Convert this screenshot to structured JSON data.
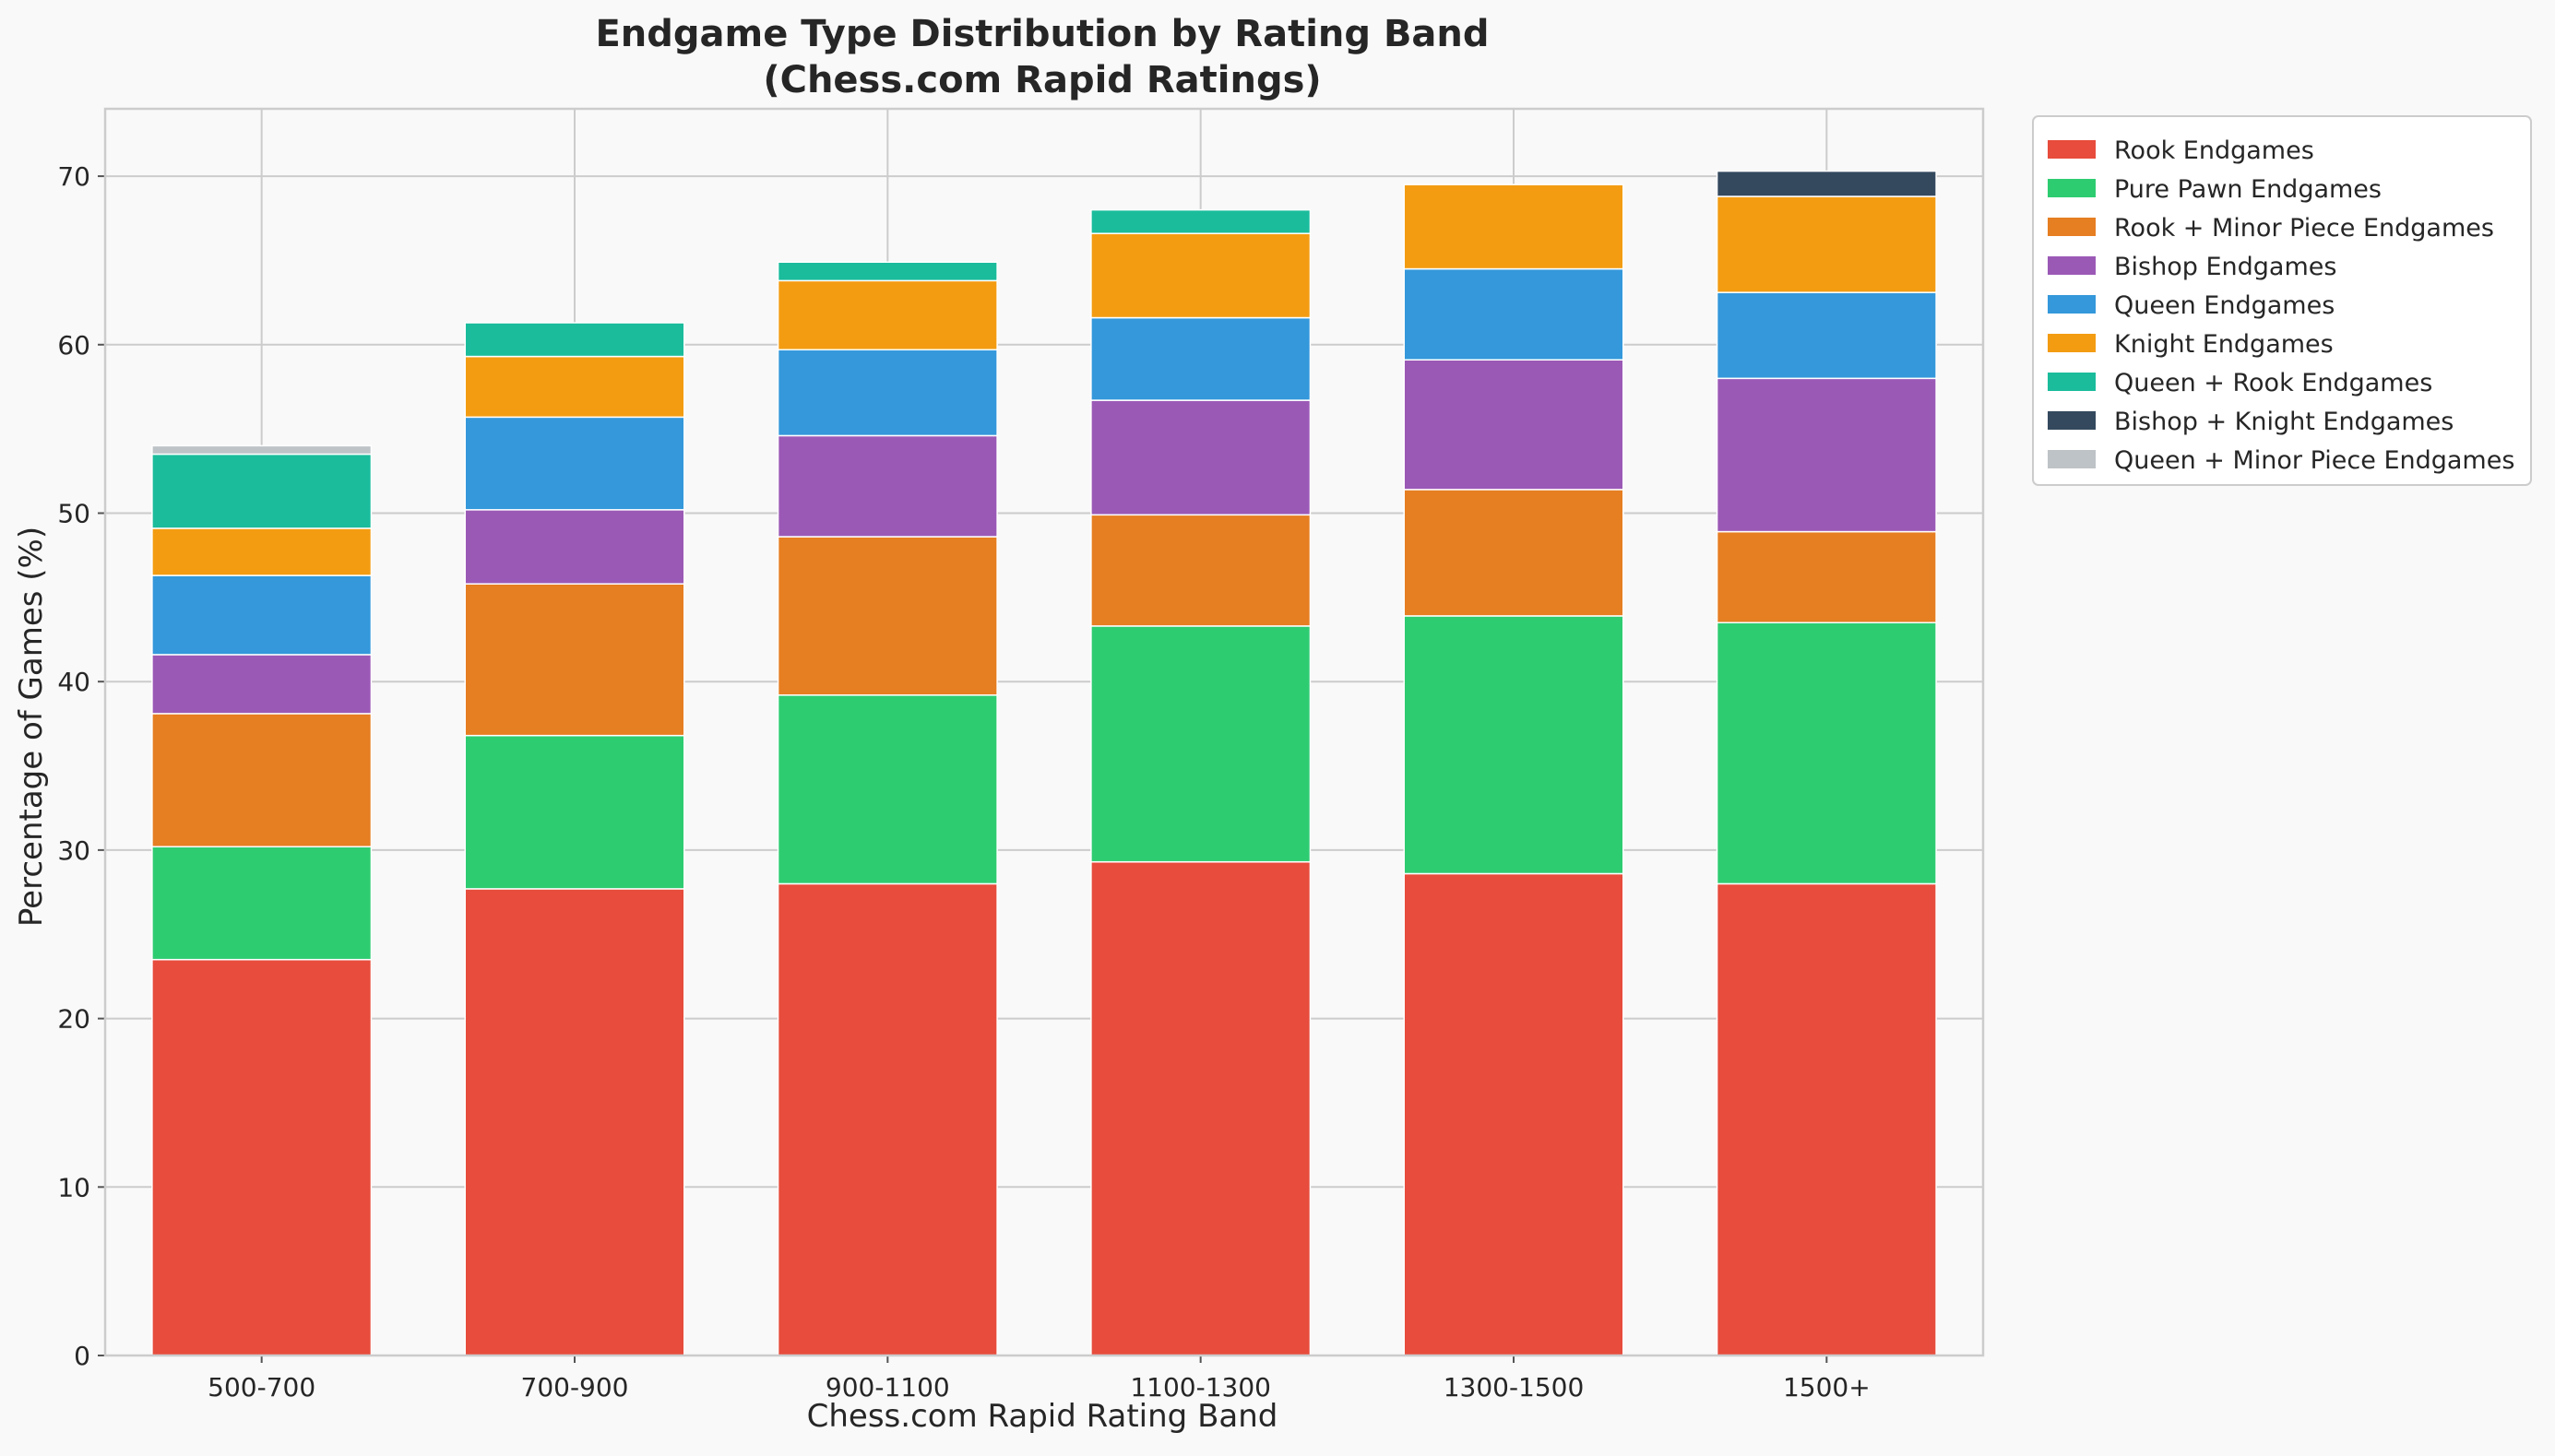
{
  "chart_data": {
    "type": "bar",
    "stacked": true,
    "title_lines": [
      "Endgame Type Distribution by Rating Band",
      "(Chess.com Rapid Ratings)"
    ],
    "xlabel": "Chess.com Rapid Rating Band",
    "ylabel": "Percentage of Games (%)",
    "categories": [
      "500-700",
      "700-900",
      "900-1100",
      "1100-1300",
      "1300-1500",
      "1500+"
    ],
    "ylim": [
      0,
      74
    ],
    "yticks": [
      0,
      10,
      20,
      30,
      40,
      50,
      60,
      70
    ],
    "grid": true,
    "legend_position": "outside top-right",
    "series": [
      {
        "name": "Rook Endgames",
        "color": "#e74c3c",
        "values": [
          23.5,
          27.7,
          28.0,
          29.3,
          28.6,
          28.0
        ]
      },
      {
        "name": "Pure Pawn Endgames",
        "color": "#2ecc71",
        "values": [
          6.7,
          9.1,
          11.2,
          14.0,
          15.3,
          15.5
        ]
      },
      {
        "name": "Rook + Minor Piece Endgames",
        "color": "#e67e22",
        "values": [
          7.9,
          9.0,
          9.4,
          6.6,
          7.5,
          5.4
        ]
      },
      {
        "name": "Bishop Endgames",
        "color": "#9b59b6",
        "values": [
          3.5,
          4.4,
          6.0,
          6.8,
          7.7,
          9.1
        ]
      },
      {
        "name": "Queen Endgames",
        "color": "#3498db",
        "values": [
          4.7,
          5.5,
          5.1,
          4.9,
          5.4,
          5.1
        ]
      },
      {
        "name": "Knight Endgames",
        "color": "#f39c12",
        "values": [
          2.8,
          3.6,
          4.1,
          5.0,
          5.0,
          5.7
        ]
      },
      {
        "name": "Queen + Rook Endgames",
        "color": "#1abc9c",
        "values": [
          4.4,
          2.0,
          1.1,
          1.4,
          0,
          0
        ]
      },
      {
        "name": "Bishop + Knight Endgames",
        "color": "#34495e",
        "values": [
          0,
          0,
          0,
          0,
          0,
          1.5
        ]
      },
      {
        "name": "Queen + Minor Piece Endgames",
        "color": "#bdc3c7",
        "values": [
          0.5,
          0,
          0,
          0,
          0,
          0
        ]
      }
    ]
  }
}
